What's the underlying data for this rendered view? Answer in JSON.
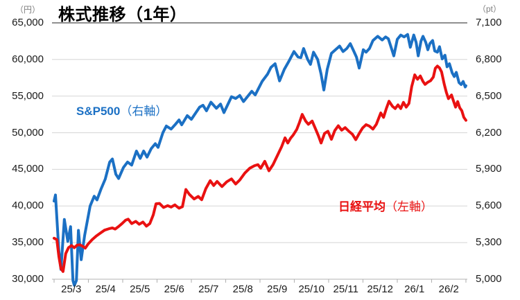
{
  "title": "株式推移（1年）",
  "colors": {
    "sp500_blue": "#1B70C4",
    "nikkei_red": "#E91111",
    "grid": "#D9D9D9",
    "top_border": "#4d4d4d",
    "axis": "#B3B3B3",
    "tick_text": "#1a1a1a",
    "unit_text": "#7f7f7f",
    "title_text": "#000000"
  },
  "chart_data": {
    "type": "line",
    "title": "株式推移（1年）",
    "grid": "horizontal",
    "legend": "inline-annotations",
    "x_axis": {
      "labels": [
        "25/3",
        "25/4",
        "25/5",
        "25/6",
        "25/7",
        "25/8",
        "25/9",
        "25/10",
        "25/11",
        "25/12",
        "26/1",
        "26/2"
      ],
      "range_months": [
        0,
        12
      ]
    },
    "left_axis": {
      "unit": "（円）",
      "min": 30000,
      "max": 65000,
      "step": 5000,
      "ticks": [
        "65,000",
        "60,000",
        "55,000",
        "50,000",
        "45,000",
        "40,000",
        "35,000",
        "30,000"
      ]
    },
    "right_axis": {
      "unit": "（pt）",
      "min": 5000,
      "max": 7100,
      "step": 300,
      "ticks": [
        "7,100",
        "6,800",
        "6,500",
        "6,200",
        "5,900",
        "5,600",
        "5,300",
        "5,000"
      ]
    },
    "series": [
      {
        "name": "sp500",
        "label": "S&P500",
        "axis_note": "（右軸）",
        "axis": "right",
        "color": "#1B70C4",
        "points": [
          [
            0,
            5640
          ],
          [
            0.04,
            5690
          ],
          [
            0.14,
            5230
          ],
          [
            0.2,
            5080
          ],
          [
            0.3,
            5490
          ],
          [
            0.4,
            5310
          ],
          [
            0.48,
            5430
          ],
          [
            0.55,
            4990
          ],
          [
            0.59,
            4950
          ],
          [
            0.65,
            4990
          ],
          [
            0.71,
            5400
          ],
          [
            0.79,
            5160
          ],
          [
            0.89,
            5360
          ],
          [
            1.05,
            5600
          ],
          [
            1.17,
            5680
          ],
          [
            1.25,
            5650
          ],
          [
            1.37,
            5740
          ],
          [
            1.49,
            5820
          ],
          [
            1.62,
            5960
          ],
          [
            1.7,
            5985
          ],
          [
            1.8,
            5860
          ],
          [
            1.88,
            5825
          ],
          [
            2.02,
            5915
          ],
          [
            2.14,
            5960
          ],
          [
            2.26,
            5935
          ],
          [
            2.4,
            6050
          ],
          [
            2.51,
            5990
          ],
          [
            2.61,
            6050
          ],
          [
            2.71,
            6000
          ],
          [
            2.83,
            6070
          ],
          [
            2.95,
            6110
          ],
          [
            3.03,
            6080
          ],
          [
            3.17,
            6200
          ],
          [
            3.27,
            6255
          ],
          [
            3.41,
            6230
          ],
          [
            3.54,
            6270
          ],
          [
            3.64,
            6305
          ],
          [
            3.72,
            6265
          ],
          [
            3.88,
            6340
          ],
          [
            4,
            6310
          ],
          [
            4.24,
            6410
          ],
          [
            4.34,
            6425
          ],
          [
            4.44,
            6380
          ],
          [
            4.57,
            6450
          ],
          [
            4.73,
            6400
          ],
          [
            4.85,
            6435
          ],
          [
            4.95,
            6365
          ],
          [
            5.17,
            6495
          ],
          [
            5.29,
            6480
          ],
          [
            5.41,
            6505
          ],
          [
            5.52,
            6455
          ],
          [
            5.76,
            6540
          ],
          [
            5.86,
            6510
          ],
          [
            6.06,
            6620
          ],
          [
            6.22,
            6680
          ],
          [
            6.32,
            6735
          ],
          [
            6.44,
            6765
          ],
          [
            6.57,
            6625
          ],
          [
            6.71,
            6720
          ],
          [
            6.85,
            6790
          ],
          [
            6.99,
            6865
          ],
          [
            7.11,
            6820
          ],
          [
            7.19,
            6815
          ],
          [
            7.27,
            6890
          ],
          [
            7.39,
            6800
          ],
          [
            7.47,
            6760
          ],
          [
            7.56,
            6860
          ],
          [
            7.68,
            6800
          ],
          [
            7.78,
            6680
          ],
          [
            7.86,
            6550
          ],
          [
            7.96,
            6720
          ],
          [
            8.08,
            6850
          ],
          [
            8.2,
            6880
          ],
          [
            8.32,
            6910
          ],
          [
            8.42,
            6865
          ],
          [
            8.53,
            6890
          ],
          [
            8.63,
            6930
          ],
          [
            8.73,
            6870
          ],
          [
            8.81,
            6820
          ],
          [
            8.89,
            6730
          ],
          [
            9.01,
            6880
          ],
          [
            9.09,
            6860
          ],
          [
            9.19,
            6890
          ],
          [
            9.29,
            6955
          ],
          [
            9.43,
            6990
          ],
          [
            9.56,
            6960
          ],
          [
            9.66,
            6985
          ],
          [
            9.74,
            6970
          ],
          [
            9.82,
            6900
          ],
          [
            9.9,
            6830
          ],
          [
            10,
            6965
          ],
          [
            10.1,
            7000
          ],
          [
            10.2,
            6985
          ],
          [
            10.3,
            7005
          ],
          [
            10.38,
            6900
          ],
          [
            10.48,
            7000
          ],
          [
            10.55,
            6940
          ],
          [
            10.61,
            6830
          ],
          [
            10.69,
            6950
          ],
          [
            10.75,
            6990
          ],
          [
            10.83,
            6940
          ],
          [
            10.89,
            6880
          ],
          [
            10.95,
            6930
          ],
          [
            11.03,
            6955
          ],
          [
            11.09,
            6870
          ],
          [
            11.17,
            6860
          ],
          [
            11.23,
            6905
          ],
          [
            11.31,
            6805
          ],
          [
            11.39,
            6835
          ],
          [
            11.45,
            6740
          ],
          [
            11.52,
            6765
          ],
          [
            11.6,
            6690
          ],
          [
            11.66,
            6660
          ],
          [
            11.72,
            6695
          ],
          [
            11.8,
            6610
          ],
          [
            11.86,
            6595
          ],
          [
            11.92,
            6620
          ],
          [
            11.98,
            6575
          ],
          [
            12,
            6585
          ]
        ]
      },
      {
        "name": "nikkei",
        "label": "日経平均",
        "axis_note": "（左軸）",
        "axis": "left",
        "color": "#E91111",
        "points": [
          [
            0,
            35600
          ],
          [
            0.08,
            35400
          ],
          [
            0.14,
            33100
          ],
          [
            0.2,
            31450
          ],
          [
            0.26,
            31050
          ],
          [
            0.34,
            33500
          ],
          [
            0.42,
            34300
          ],
          [
            0.51,
            34600
          ],
          [
            0.59,
            34300
          ],
          [
            0.67,
            34650
          ],
          [
            0.75,
            34700
          ],
          [
            0.83,
            34500
          ],
          [
            0.91,
            34250
          ],
          [
            0.99,
            34800
          ],
          [
            1.11,
            35400
          ],
          [
            1.23,
            35900
          ],
          [
            1.35,
            36300
          ],
          [
            1.47,
            36700
          ],
          [
            1.6,
            36900
          ],
          [
            1.7,
            37000
          ],
          [
            1.78,
            36850
          ],
          [
            1.88,
            37200
          ],
          [
            1.98,
            37600
          ],
          [
            2.08,
            38050
          ],
          [
            2.16,
            38200
          ],
          [
            2.26,
            37600
          ],
          [
            2.38,
            37900
          ],
          [
            2.48,
            37500
          ],
          [
            2.59,
            37800
          ],
          [
            2.69,
            37250
          ],
          [
            2.79,
            37600
          ],
          [
            2.89,
            38800
          ],
          [
            2.97,
            40300
          ],
          [
            3.07,
            40350
          ],
          [
            3.19,
            39800
          ],
          [
            3.31,
            40050
          ],
          [
            3.41,
            39850
          ],
          [
            3.52,
            40150
          ],
          [
            3.64,
            39700
          ],
          [
            3.74,
            39900
          ],
          [
            3.84,
            42250
          ],
          [
            3.94,
            41600
          ],
          [
            4.08,
            40950
          ],
          [
            4.2,
            41300
          ],
          [
            4.3,
            40850
          ],
          [
            4.42,
            42350
          ],
          [
            4.55,
            43450
          ],
          [
            4.65,
            42800
          ],
          [
            4.75,
            43350
          ],
          [
            4.89,
            42650
          ],
          [
            5.03,
            43300
          ],
          [
            5.17,
            43700
          ],
          [
            5.29,
            43000
          ],
          [
            5.41,
            43550
          ],
          [
            5.56,
            44500
          ],
          [
            5.7,
            45150
          ],
          [
            5.84,
            45500
          ],
          [
            5.94,
            45650
          ],
          [
            6.02,
            45150
          ],
          [
            6.14,
            46100
          ],
          [
            6.26,
            44800
          ],
          [
            6.38,
            45650
          ],
          [
            6.51,
            46900
          ],
          [
            6.63,
            48100
          ],
          [
            6.73,
            49300
          ],
          [
            6.81,
            48600
          ],
          [
            6.89,
            49250
          ],
          [
            6.97,
            49700
          ],
          [
            7.07,
            50450
          ],
          [
            7.15,
            51400
          ],
          [
            7.23,
            52500
          ],
          [
            7.33,
            51600
          ],
          [
            7.41,
            51150
          ],
          [
            7.52,
            51600
          ],
          [
            7.62,
            50500
          ],
          [
            7.7,
            49600
          ],
          [
            7.78,
            48600
          ],
          [
            7.88,
            49900
          ],
          [
            7.98,
            50200
          ],
          [
            8.08,
            49100
          ],
          [
            8.18,
            50300
          ],
          [
            8.28,
            50950
          ],
          [
            8.38,
            50350
          ],
          [
            8.48,
            50700
          ],
          [
            8.59,
            50200
          ],
          [
            8.69,
            49800
          ],
          [
            8.79,
            49050
          ],
          [
            8.89,
            49900
          ],
          [
            8.99,
            50650
          ],
          [
            9.09,
            51100
          ],
          [
            9.19,
            50900
          ],
          [
            9.29,
            50500
          ],
          [
            9.39,
            51150
          ],
          [
            9.52,
            52700
          ],
          [
            9.6,
            52100
          ],
          [
            9.68,
            53300
          ],
          [
            9.76,
            54300
          ],
          [
            9.86,
            53600
          ],
          [
            9.94,
            53300
          ],
          [
            10.02,
            53800
          ],
          [
            10.1,
            53300
          ],
          [
            10.18,
            54150
          ],
          [
            10.26,
            53500
          ],
          [
            10.34,
            54000
          ],
          [
            10.42,
            56300
          ],
          [
            10.51,
            57900
          ],
          [
            10.59,
            57300
          ],
          [
            10.67,
            57750
          ],
          [
            10.75,
            57000
          ],
          [
            10.81,
            56600
          ],
          [
            10.89,
            56900
          ],
          [
            10.97,
            57100
          ],
          [
            11.05,
            57600
          ],
          [
            11.11,
            58800
          ],
          [
            11.17,
            59100
          ],
          [
            11.23,
            58850
          ],
          [
            11.29,
            58300
          ],
          [
            11.37,
            56600
          ],
          [
            11.43,
            55500
          ],
          [
            11.49,
            54650
          ],
          [
            11.58,
            55150
          ],
          [
            11.64,
            54300
          ],
          [
            11.7,
            53500
          ],
          [
            11.76,
            54250
          ],
          [
            11.82,
            53400
          ],
          [
            11.88,
            53000
          ],
          [
            11.94,
            52100
          ],
          [
            12,
            51700
          ]
        ]
      }
    ]
  }
}
